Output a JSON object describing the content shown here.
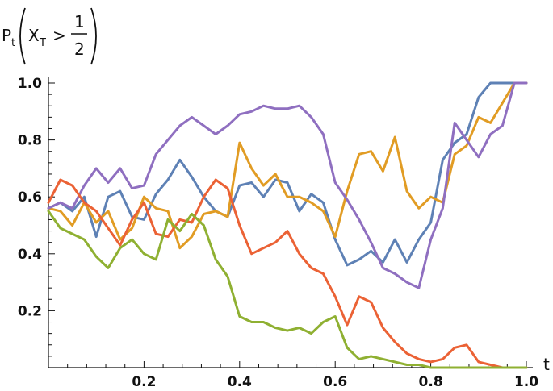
{
  "chart_data": {
    "type": "line",
    "title": "",
    "xlabel": "t",
    "ylabel_parts": {
      "p": "P",
      "p_sub": "t",
      "x": "X",
      "x_sub": "T",
      "op": ">",
      "frac_num": "1",
      "frac_den": "2"
    },
    "xlim": [
      0,
      1.0
    ],
    "ylim": [
      0,
      1.0
    ],
    "x_ticks": [
      {
        "value": 0.2,
        "label": "0.2"
      },
      {
        "value": 0.4,
        "label": "0.4"
      },
      {
        "value": 0.6,
        "label": "0.6"
      },
      {
        "value": 0.8,
        "label": "0.8"
      },
      {
        "value": 1.0,
        "label": "1.0"
      }
    ],
    "y_ticks": [
      {
        "value": 0.2,
        "label": "0.2"
      },
      {
        "value": 0.4,
        "label": "0.4"
      },
      {
        "value": 0.6,
        "label": "0.6"
      },
      {
        "value": 0.8,
        "label": "0.8"
      },
      {
        "value": 1.0,
        "label": "1.0"
      }
    ],
    "x": [
      0.0,
      0.025,
      0.05,
      0.075,
      0.1,
      0.125,
      0.15,
      0.175,
      0.2,
      0.225,
      0.25,
      0.275,
      0.3,
      0.325,
      0.35,
      0.375,
      0.4,
      0.425,
      0.45,
      0.475,
      0.5,
      0.525,
      0.55,
      0.575,
      0.6,
      0.625,
      0.65,
      0.675,
      0.7,
      0.725,
      0.75,
      0.775,
      0.8,
      0.825,
      0.85,
      0.875,
      0.9,
      0.925,
      0.95,
      0.975,
      1.0
    ],
    "series": [
      {
        "color": "#5E81B5",
        "values": [
          0.56,
          0.58,
          0.55,
          0.6,
          0.46,
          0.6,
          0.62,
          0.53,
          0.52,
          0.61,
          0.66,
          0.73,
          0.67,
          0.6,
          0.55,
          0.53,
          0.64,
          0.65,
          0.6,
          0.66,
          0.65,
          0.55,
          0.61,
          0.58,
          0.45,
          0.36,
          0.38,
          0.41,
          0.37,
          0.45,
          0.37,
          0.45,
          0.51,
          0.73,
          0.79,
          0.82,
          0.95,
          1.0,
          1.0,
          1.0,
          1.0
        ]
      },
      {
        "color": "#E19C24",
        "values": [
          0.56,
          0.55,
          0.5,
          0.58,
          0.51,
          0.55,
          0.45,
          0.49,
          0.6,
          0.56,
          0.55,
          0.42,
          0.46,
          0.54,
          0.55,
          0.53,
          0.79,
          0.7,
          0.64,
          0.68,
          0.6,
          0.6,
          0.58,
          0.55,
          0.46,
          0.62,
          0.75,
          0.76,
          0.69,
          0.81,
          0.62,
          0.56,
          0.6,
          0.58,
          0.75,
          0.78,
          0.88,
          0.86,
          0.93,
          1.0,
          1.0
        ]
      },
      {
        "color": "#8F6FC0",
        "values": [
          0.56,
          0.58,
          0.56,
          0.64,
          0.7,
          0.65,
          0.7,
          0.63,
          0.64,
          0.75,
          0.8,
          0.85,
          0.88,
          0.85,
          0.82,
          0.85,
          0.89,
          0.9,
          0.92,
          0.91,
          0.91,
          0.92,
          0.88,
          0.82,
          0.65,
          0.59,
          0.52,
          0.44,
          0.35,
          0.33,
          0.3,
          0.28,
          0.45,
          0.56,
          0.86,
          0.8,
          0.74,
          0.82,
          0.85,
          1.0,
          1.0
        ]
      },
      {
        "color": "#EB6235",
        "values": [
          0.58,
          0.66,
          0.64,
          0.58,
          0.55,
          0.49,
          0.43,
          0.52,
          0.58,
          0.47,
          0.46,
          0.52,
          0.51,
          0.6,
          0.66,
          0.63,
          0.5,
          0.4,
          0.42,
          0.44,
          0.48,
          0.4,
          0.35,
          0.33,
          0.25,
          0.15,
          0.25,
          0.23,
          0.14,
          0.09,
          0.05,
          0.03,
          0.02,
          0.03,
          0.07,
          0.08,
          0.02,
          0.01,
          0.0,
          0.0,
          0.0
        ]
      },
      {
        "color": "#8FB032",
        "values": [
          0.55,
          0.49,
          0.47,
          0.45,
          0.39,
          0.35,
          0.42,
          0.45,
          0.4,
          0.38,
          0.52,
          0.48,
          0.54,
          0.5,
          0.38,
          0.32,
          0.18,
          0.16,
          0.16,
          0.14,
          0.13,
          0.14,
          0.12,
          0.16,
          0.18,
          0.07,
          0.03,
          0.04,
          0.03,
          0.02,
          0.01,
          0.01,
          0.0,
          0.0,
          0.0,
          0.0,
          0.0,
          0.0,
          0.0,
          0.0,
          0.0
        ]
      }
    ]
  }
}
